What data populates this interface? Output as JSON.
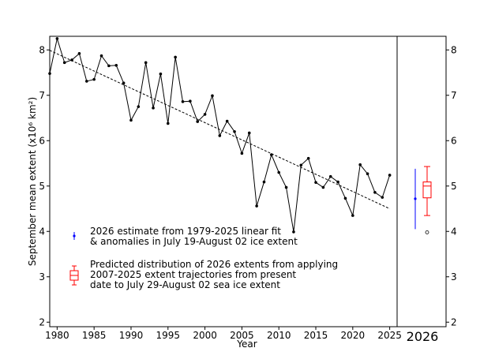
{
  "chart_data": [
    {
      "type": "line",
      "xlabel": "Year",
      "ylabel": "September mean extent (x10⁶ km²)",
      "xlim": [
        1979,
        2026
      ],
      "ylim": [
        1.9,
        8.3
      ],
      "x_ticks": [
        "1980",
        "1985",
        "1990",
        "1995",
        "2000",
        "2005",
        "2010",
        "2015",
        "2020",
        "2025"
      ],
      "y_ticks": [
        "2",
        "3",
        "4",
        "5",
        "6",
        "7",
        "8"
      ],
      "grid": false,
      "legend_position": "lower-left",
      "series": [
        {
          "x": [
            1979,
            1980,
            1981,
            1982,
            1983,
            1984,
            1985,
            1986,
            1987,
            1988,
            1989,
            1990,
            1991,
            1992,
            1993,
            1994,
            1995,
            1996,
            1997,
            1998,
            1999,
            2000,
            2001,
            2002,
            2003,
            2004,
            2005,
            2006,
            2007,
            2008,
            2009,
            2010,
            2011,
            2012,
            2013,
            2014,
            2015,
            2016,
            2017,
            2018,
            2019,
            2020,
            2021,
            2022,
            2023,
            2024,
            2025
          ],
          "y": [
            7.48,
            8.25,
            7.72,
            7.78,
            7.92,
            7.31,
            7.35,
            7.87,
            7.65,
            7.66,
            7.27,
            6.45,
            6.75,
            7.72,
            6.72,
            7.47,
            6.38,
            7.84,
            6.86,
            6.87,
            6.42,
            6.58,
            6.99,
            6.11,
            6.43,
            6.2,
            5.72,
            6.17,
            4.56,
            5.09,
            5.69,
            5.3,
            4.97,
            3.99,
            5.46,
            5.61,
            5.08,
            4.97,
            5.21,
            5.09,
            4.73,
            4.35,
            5.47,
            5.27,
            4.86,
            4.75,
            5.24
          ],
          "color": "#000000",
          "marker": "dot"
        },
        {
          "x": [
            1979,
            2025
          ],
          "y": [
            7.99,
            4.5
          ],
          "style": "dashed",
          "color": "#000000"
        }
      ],
      "legend": [
        {
          "text_lines": [
            "2026 estimate from 1979-2025 linear fit",
            "& anomalies in July 19-August 02 ice extent"
          ],
          "color": "#0000ff",
          "symbol": "errorbar"
        },
        {
          "text_lines": [
            "Predicted distribution of 2026 extents from applying",
            "2007-2025 extent trajectories from present",
            "date to July 29-August 02 sea ice extent"
          ],
          "color": "#ff0000",
          "symbol": "boxplot"
        }
      ]
    },
    {
      "type": "box",
      "category": "2026",
      "ylim": [
        1.9,
        8.3
      ],
      "y_ticks_right": [
        "2",
        "3",
        "4",
        "5",
        "6",
        "7",
        "8"
      ],
      "errorbar": {
        "value": 4.72,
        "low": 4.05,
        "high": 5.38,
        "color": "#0000ff"
      },
      "boxplot": {
        "whisker_low": 4.35,
        "q1": 4.74,
        "median": 5.0,
        "q3": 5.09,
        "whisker_high": 5.43,
        "outliers": [
          3.98
        ],
        "color": "#ff0000"
      }
    }
  ]
}
